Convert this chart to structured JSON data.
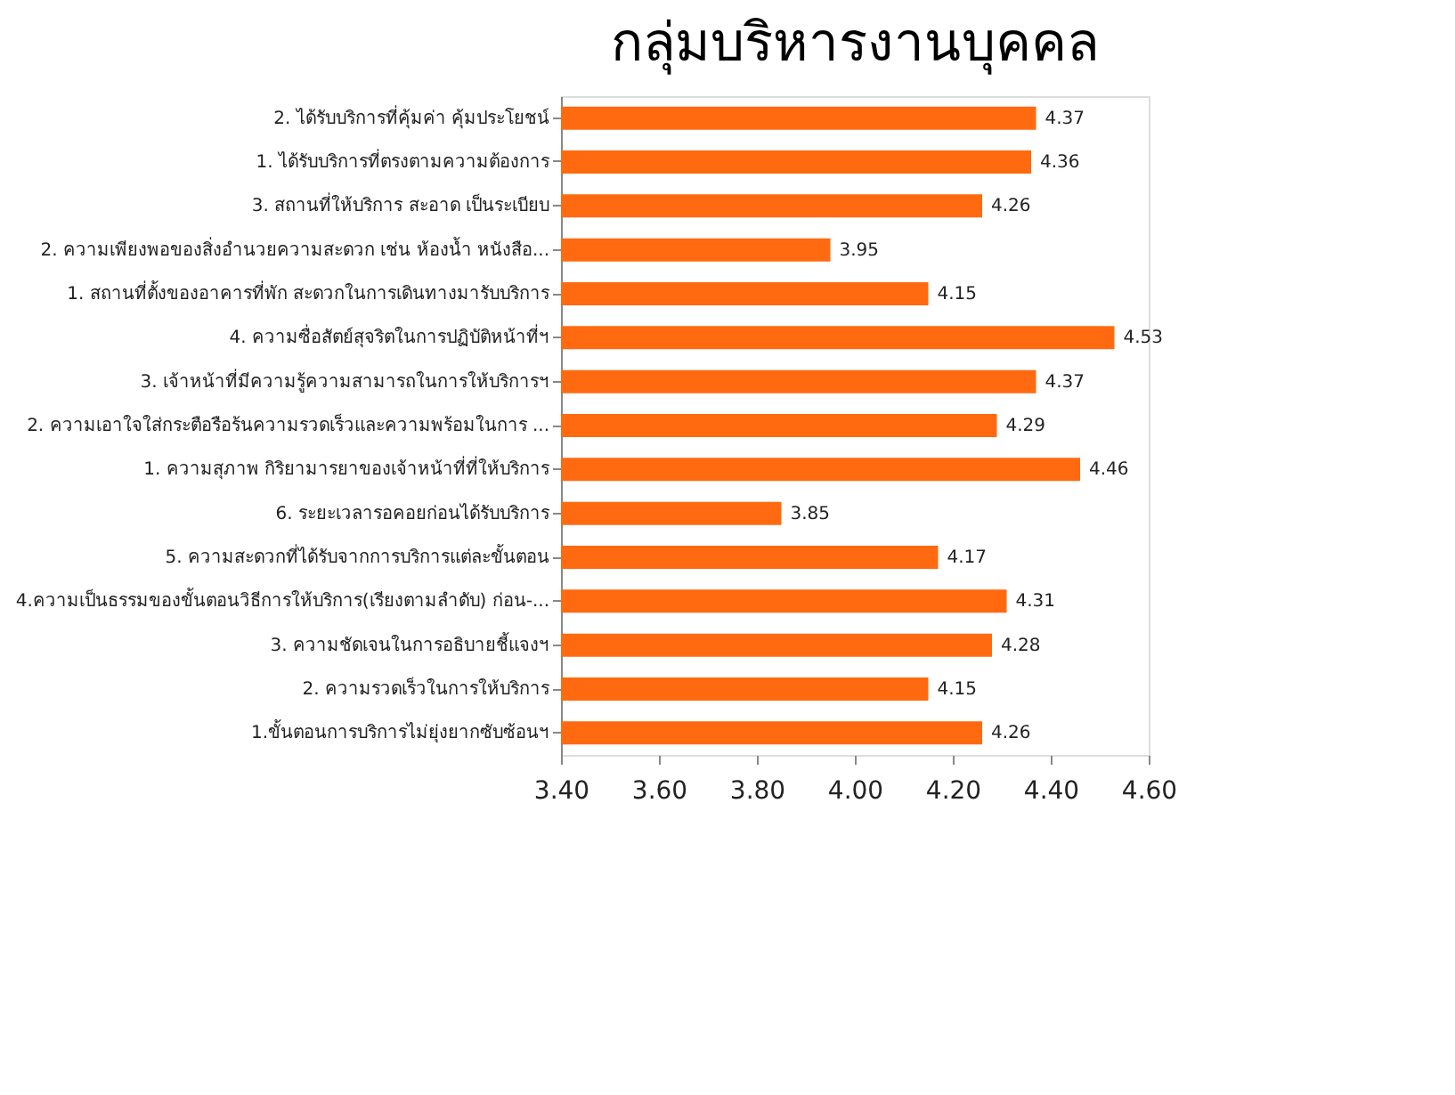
{
  "chart_data": {
    "type": "bar",
    "orientation": "horizontal",
    "title": "กลุ่มบริหารงานบุคคล",
    "categories": [
      "2. ได้รับบริการที่คุ้มค่า  คุ้มประโยชน์",
      "1. ได้รับบริการที่ตรงตามความต้องการ",
      "3.  สถานที่ให้บริการ สะอาด เป็นระเบียบ",
      "2. ความเพียงพอของสิ่งอำนวยความสะดวก   เช่น  ห้องน้ำ  หนังสือ...",
      "1. สถานที่ตั้งของอาคารที่พัก  สะดวกในการเดินทางมารับบริการ",
      "4. ความซื่อสัตย์สุจริตในการปฏิบัติหน้าที่ฯ",
      "3. เจ้าหน้าที่มีความรู้ความสามารถในการให้บริการฯ",
      "2. ความเอาใจใส่กระตือรือร้นความรวดเร็วและความพร้อมในการ ...",
      "1. ความสุภาพ กิริยามารยาของเจ้าหน้าที่ที่ให้บริการ",
      "6. ระยะเวลารอคอยก่อนได้รับบริการ",
      "5. ความสะดวกที่ได้รับจากการบริการแต่ละขั้นตอน",
      "4.ความเป็นธรรมของขั้นตอนวิธีการให้บริการ(เรียงตามลำดับ)  ก่อน-...",
      "3. ความชัดเจนในการอธิบายชี้แจงฯ",
      "2. ความรวดเร็วในการให้บริการ",
      "1.ขั้นตอนการบริการไม่ยุ่งยากซับซ้อนฯ"
    ],
    "values": [
      4.37,
      4.36,
      4.26,
      3.95,
      4.15,
      4.53,
      4.37,
      4.29,
      4.46,
      3.85,
      4.17,
      4.31,
      4.28,
      4.15,
      4.26
    ],
    "color": "#ff6a10",
    "xlim": [
      3.4,
      4.6
    ],
    "xticks": [
      {
        "value": 3.4,
        "label": "3.40"
      },
      {
        "value": 3.6,
        "label": "3.60"
      },
      {
        "value": 3.8,
        "label": "3.80"
      },
      {
        "value": 4.0,
        "label": "4.00"
      },
      {
        "value": 4.2,
        "label": "4.20"
      },
      {
        "value": 4.4,
        "label": "4.40"
      },
      {
        "value": 4.6,
        "label": "4.60"
      }
    ],
    "data_labels": true,
    "grid": false
  }
}
